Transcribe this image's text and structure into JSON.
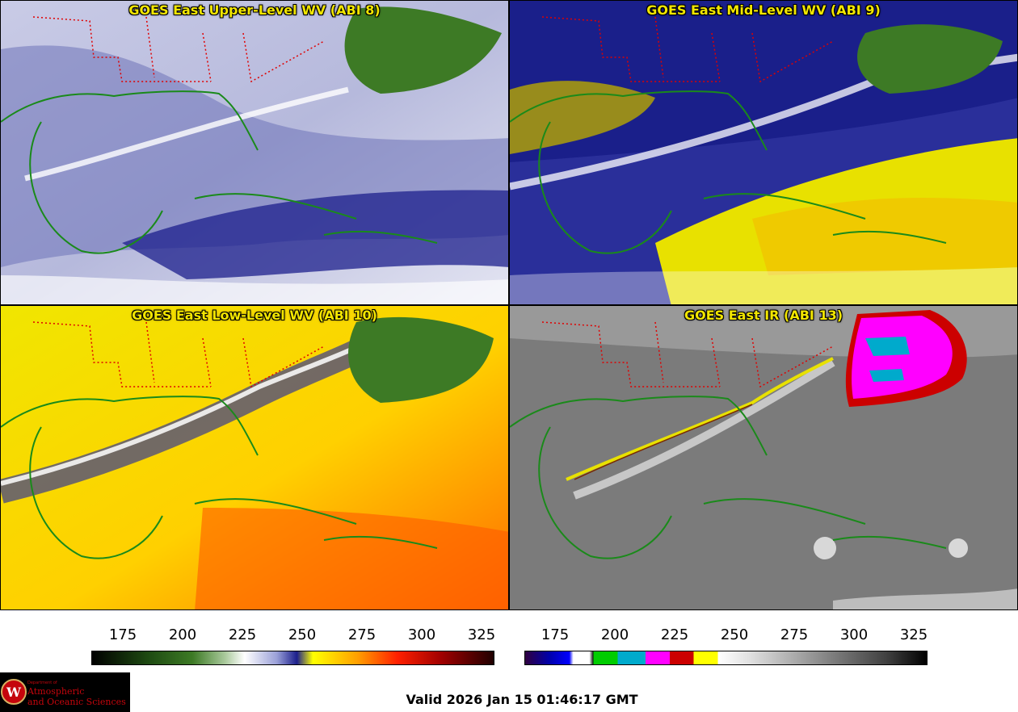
{
  "panels": [
    {
      "id": "upper",
      "title": "GOES East Upper-Level WV (ABI 8)"
    },
    {
      "id": "mid",
      "title": "GOES East Mid-Level WV (ABI 9)"
    },
    {
      "id": "low",
      "title": "GOES East Low-Level WV (ABI 10)"
    },
    {
      "id": "ir",
      "title": "GOES East IR (ABI 13)"
    }
  ],
  "colorbars": {
    "wv": {
      "ticks": [
        "175",
        "200",
        "225",
        "250",
        "275",
        "300",
        "325"
      ]
    },
    "ir": {
      "ticks": [
        "175",
        "200",
        "225",
        "250",
        "275",
        "300",
        "325"
      ]
    }
  },
  "logo": {
    "line1": "Department of",
    "line2": "Atmospheric",
    "line3": "and Oceanic Sciences",
    "seal_letter": "W"
  },
  "footer": {
    "valid_text": "Valid 2026 Jan 15 01:46:17 GMT"
  },
  "colors": {
    "title_text": "#f2e600",
    "coast": "#1a8a1a",
    "state_border": "#e00000",
    "wv_palette": [
      "#000000",
      "#2a6a1a",
      "#6aa050",
      "#ffffff",
      "#0a0a80",
      "#ffff00",
      "#ff8800",
      "#dd0000",
      "#400000"
    ],
    "ir_palette": [
      "#300040",
      "#0000cc",
      "#ffffff",
      "#00cc00",
      "#00aacc",
      "#ff00ff",
      "#cc0000",
      "#ffff00",
      "#ffffff",
      "#000000"
    ]
  }
}
